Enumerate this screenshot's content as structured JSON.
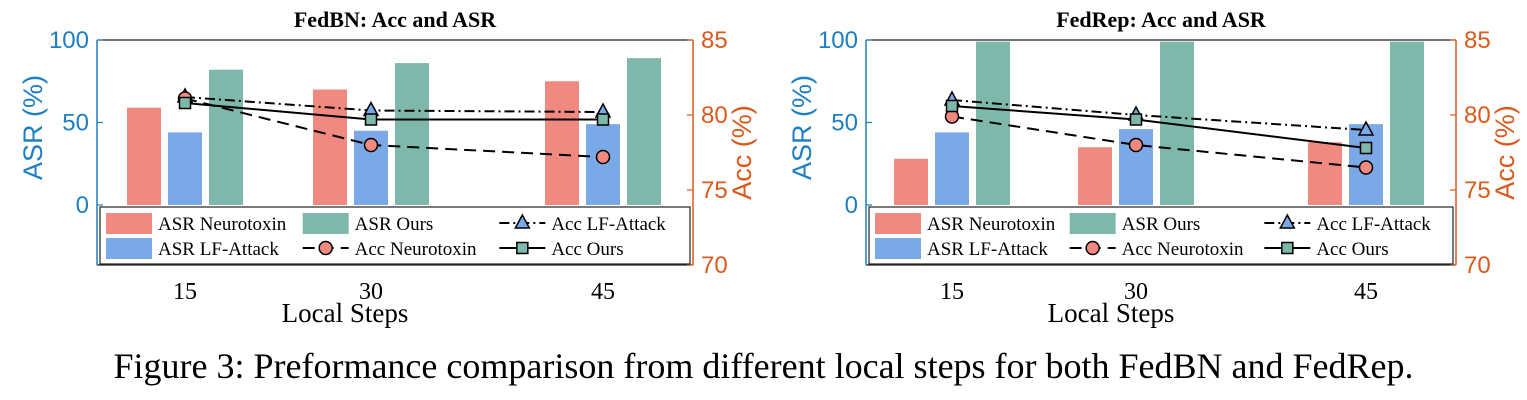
{
  "caption": "Figure 3: Preformance comparison from different local steps for both FedBN and FedRep.",
  "colors": {
    "asr_neurotoxin": "#F08A80",
    "asr_lf_attack": "#7BA8E6",
    "asr_ours": "#7DB8AA",
    "left_axis": "#1E7FC2",
    "right_axis": "#DA5A1E",
    "line": "#000000"
  },
  "chart_data": [
    {
      "type": "bar",
      "title": "FedBN: Acc and ASR",
      "xlabel": "Local Steps",
      "ylabel": "ASR (%)",
      "ylabel_right": "Acc (%)",
      "categories": [
        "15",
        "30",
        "45"
      ],
      "ylim": [
        0,
        100
      ],
      "ylim_right": [
        70,
        85
      ],
      "yticks": [
        0,
        50,
        100
      ],
      "yticks_right": [
        70,
        75,
        80,
        85
      ],
      "grid": false,
      "legend_position": "bottom",
      "series": [
        {
          "name": "ASR Neurotoxin",
          "axis": "left",
          "kind": "bar",
          "values": [
            59,
            70,
            75
          ]
        },
        {
          "name": "ASR LF-Attack",
          "axis": "left",
          "kind": "bar",
          "values": [
            44,
            45,
            49
          ]
        },
        {
          "name": "ASR Ours",
          "axis": "left",
          "kind": "bar",
          "values": [
            82,
            86,
            89
          ]
        },
        {
          "name": "Acc LF-Attack",
          "axis": "right",
          "kind": "line",
          "marker": "triangle",
          "dash": "dashdot",
          "values": [
            81.2,
            80.3,
            80.2
          ]
        },
        {
          "name": "Acc Neurotoxin",
          "axis": "right",
          "kind": "line",
          "marker": "circle",
          "dash": "dashed",
          "values": [
            81.1,
            78.0,
            77.2
          ]
        },
        {
          "name": "Acc Ours",
          "axis": "right",
          "kind": "line",
          "marker": "square",
          "dash": "solid",
          "values": [
            80.8,
            79.7,
            79.7
          ]
        }
      ]
    },
    {
      "type": "bar",
      "title": "FedRep: Acc and ASR",
      "xlabel": "Local Steps",
      "ylabel": "ASR (%)",
      "ylabel_right": "Acc (%)",
      "categories": [
        "15",
        "30",
        "45"
      ],
      "ylim": [
        0,
        100
      ],
      "ylim_right": [
        70,
        85
      ],
      "yticks": [
        0,
        50,
        100
      ],
      "yticks_right": [
        70,
        75,
        80,
        85
      ],
      "grid": false,
      "legend_position": "bottom",
      "series": [
        {
          "name": "ASR Neurotoxin",
          "axis": "left",
          "kind": "bar",
          "values": [
            28,
            35,
            38
          ]
        },
        {
          "name": "ASR LF-Attack",
          "axis": "left",
          "kind": "bar",
          "values": [
            44,
            46,
            49
          ]
        },
        {
          "name": "ASR Ours",
          "axis": "left",
          "kind": "bar",
          "values": [
            99,
            99,
            99
          ]
        },
        {
          "name": "Acc LF-Attack",
          "axis": "right",
          "kind": "line",
          "marker": "triangle",
          "dash": "dashdot",
          "values": [
            81.0,
            80.0,
            79.0
          ]
        },
        {
          "name": "Acc Neurotoxin",
          "axis": "right",
          "kind": "line",
          "marker": "circle",
          "dash": "dashed",
          "values": [
            79.9,
            78.0,
            76.5
          ]
        },
        {
          "name": "Acc Ours",
          "axis": "right",
          "kind": "line",
          "marker": "square",
          "dash": "solid",
          "values": [
            80.6,
            79.7,
            77.8
          ]
        }
      ]
    }
  ]
}
